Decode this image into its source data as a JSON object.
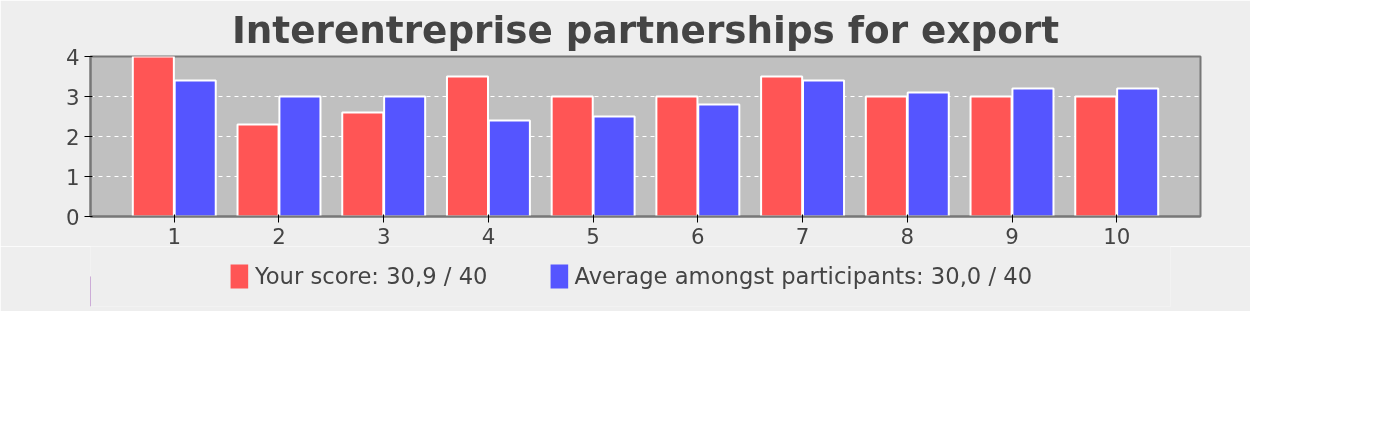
{
  "chart_data": {
    "type": "bar",
    "title": "Interentreprise partnerships for export",
    "categories": [
      "1",
      "2",
      "3",
      "4",
      "5",
      "6",
      "7",
      "8",
      "9",
      "10"
    ],
    "series": [
      {
        "name": "Your score: 30,9 / 40",
        "color": "#ff5555",
        "values": [
          4.0,
          2.3,
          2.6,
          3.5,
          3.0,
          3.0,
          3.5,
          3.0,
          3.0,
          3.0
        ]
      },
      {
        "name": "Average amongst participants: 30,0 / 40",
        "color": "#5555ff",
        "values": [
          3.4,
          3.0,
          3.0,
          2.4,
          2.5,
          2.8,
          3.4,
          3.1,
          3.2,
          3.2
        ]
      }
    ],
    "ylim": [
      0,
      4
    ],
    "yticks": [
      0,
      1,
      2,
      3,
      4
    ],
    "grid": "y",
    "legend": "bottom"
  }
}
